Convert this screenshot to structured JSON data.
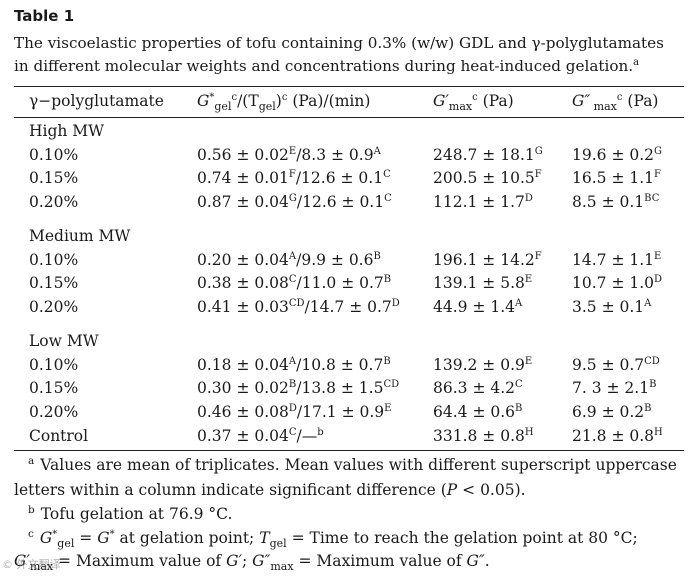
{
  "table_label": "Table 1",
  "caption": {
    "line1": "The viscoelastic properties of tofu containing 0.3% (w/w) GDL and γ-polyglutamates",
    "line2": "in different molecular weights and concentrations during heat-induced gelation.",
    "mark": "a"
  },
  "headers": {
    "col1": "γ−polyglutamate",
    "col2": {
      "g": "G",
      "star": "*",
      "sub_gel": "gel",
      "sup": "c",
      "mid": "/(T",
      "sub_gel2": "gel",
      "close": ")",
      "sup2": "c",
      "units": " (Pa)/(min)"
    },
    "col3": {
      "g": "G′",
      "sub": "max",
      "sup": "c",
      "units": " (Pa)"
    },
    "col4": {
      "g": "G″",
      "sub": " max",
      "sup": "c",
      "units": " (Pa)"
    }
  },
  "groups": [
    {
      "name": "High MW",
      "rows": [
        {
          "conc": "0.10%",
          "a1": "0.56 ± 0.02",
          "s1": "E",
          "a2": "/8.3 ± 0.9",
          "s2": "A",
          "b": "248.7 ± 18.1",
          "sb": "G",
          "c": "19.6 ± 0.2",
          "sc": "G"
        },
        {
          "conc": "0.15%",
          "a1": "0.74 ± 0.01",
          "s1": "F",
          "a2": "/12.6 ± 0.1",
          "s2": "C",
          "b": "200.5 ± 10.5",
          "sb": "F",
          "c": "16.5 ± 1.1",
          "sc": "F"
        },
        {
          "conc": "0.20%",
          "a1": "0.87 ± 0.04",
          "s1": "G",
          "a2": "/12.6 ± 0.1",
          "s2": "C",
          "b": "112.1 ± 1.7",
          "sb": "D",
          "c": "8.5 ± 0.1",
          "sc": "BC"
        }
      ]
    },
    {
      "name": "Medium MW",
      "rows": [
        {
          "conc": "0.10%",
          "a1": "0.20 ± 0.04",
          "s1": "A",
          "a2": "/9.9 ± 0.6",
          "s2": "B",
          "b": "196.1 ± 14.2",
          "sb": "F",
          "c": "14.7 ± 1.1",
          "sc": "E"
        },
        {
          "conc": "0.15%",
          "a1": "0.38 ± 0.08",
          "s1": "C",
          "a2": "/11.0 ± 0.7",
          "s2": "B",
          "b": "139.1 ± 5.8",
          "sb": "E",
          "c": "10.7 ± 1.0",
          "sc": "D"
        },
        {
          "conc": "0.20%",
          "a1": "0.41 ± 0.03",
          "s1": "CD",
          "a2": "/14.7 ± 0.7",
          "s2": "D",
          "b": "44.9 ± 1.4",
          "sb": "A",
          "c": "3.5 ± 0.1",
          "sc": "A"
        }
      ]
    },
    {
      "name": "Low MW",
      "rows": [
        {
          "conc": "0.10%",
          "a1": "0.18 ± 0.04",
          "s1": "A",
          "a2": "/10.8 ± 0.7",
          "s2": "B",
          "b": "139.2 ± 0.9",
          "sb": "E",
          "c": "9.5 ± 0.7",
          "sc": "CD"
        },
        {
          "conc": "0.15%",
          "a1": "0.30 ± 0.02",
          "s1": "B",
          "a2": "/13.8 ± 1.5",
          "s2": "CD",
          "b": "86.3 ± 4.2",
          "sb": "C",
          "c": "7. 3 ± 2.1",
          "sc": "B"
        },
        {
          "conc": "0.20%",
          "a1": "0.46 ± 0.08",
          "s1": "D",
          "a2": "/17.1 ± 0.9",
          "s2": "E",
          "b": "64.4 ± 0.6",
          "sb": "B",
          "c": "6.9 ± 0.2",
          "sc": "B"
        },
        {
          "conc": "Control",
          "a1": "0.37 ± 0.04",
          "s1": "C",
          "a2": "/—",
          "s2": "b",
          "b": "331.8 ± 0.8",
          "sb": "H",
          "c": "21.8 ± 0.8",
          "sc": "H"
        }
      ]
    }
  ],
  "footnotes": {
    "a": {
      "mark": "a",
      "line1": "Values are mean of triplicates. Mean values with different superscript uppercase",
      "line2_pre": "letters within a column indicate significant difference (",
      "p": "P",
      "line2_post": " < 0.05)."
    },
    "b": {
      "mark": "b",
      "text": "Tofu gelation at 76.9 °C."
    },
    "c": {
      "mark": "c",
      "l1_g": "G",
      "l1_star": "*",
      "l1_sub": "gel",
      "l1_eq": " = ",
      "l1_g2": "G",
      "l1_star2": "*",
      "l1_mid": " at gelation point; ",
      "l1_t": "T",
      "l1_tsub": "gel",
      "l1_rest": " = Time to reach the gelation point at 80 °C;",
      "l2_g": "G′",
      "l2_sub": "max",
      "l2_mid": " = Maximum value of ",
      "l2_g2": "G′",
      "l2_semi": "; ",
      "l2_g3": "G″",
      "l2_sub2": "max",
      "l2_mid2": " = Maximum value of ",
      "l2_g4": "G″",
      "l2_end": "."
    }
  },
  "watermark": "© 外文翻译"
}
